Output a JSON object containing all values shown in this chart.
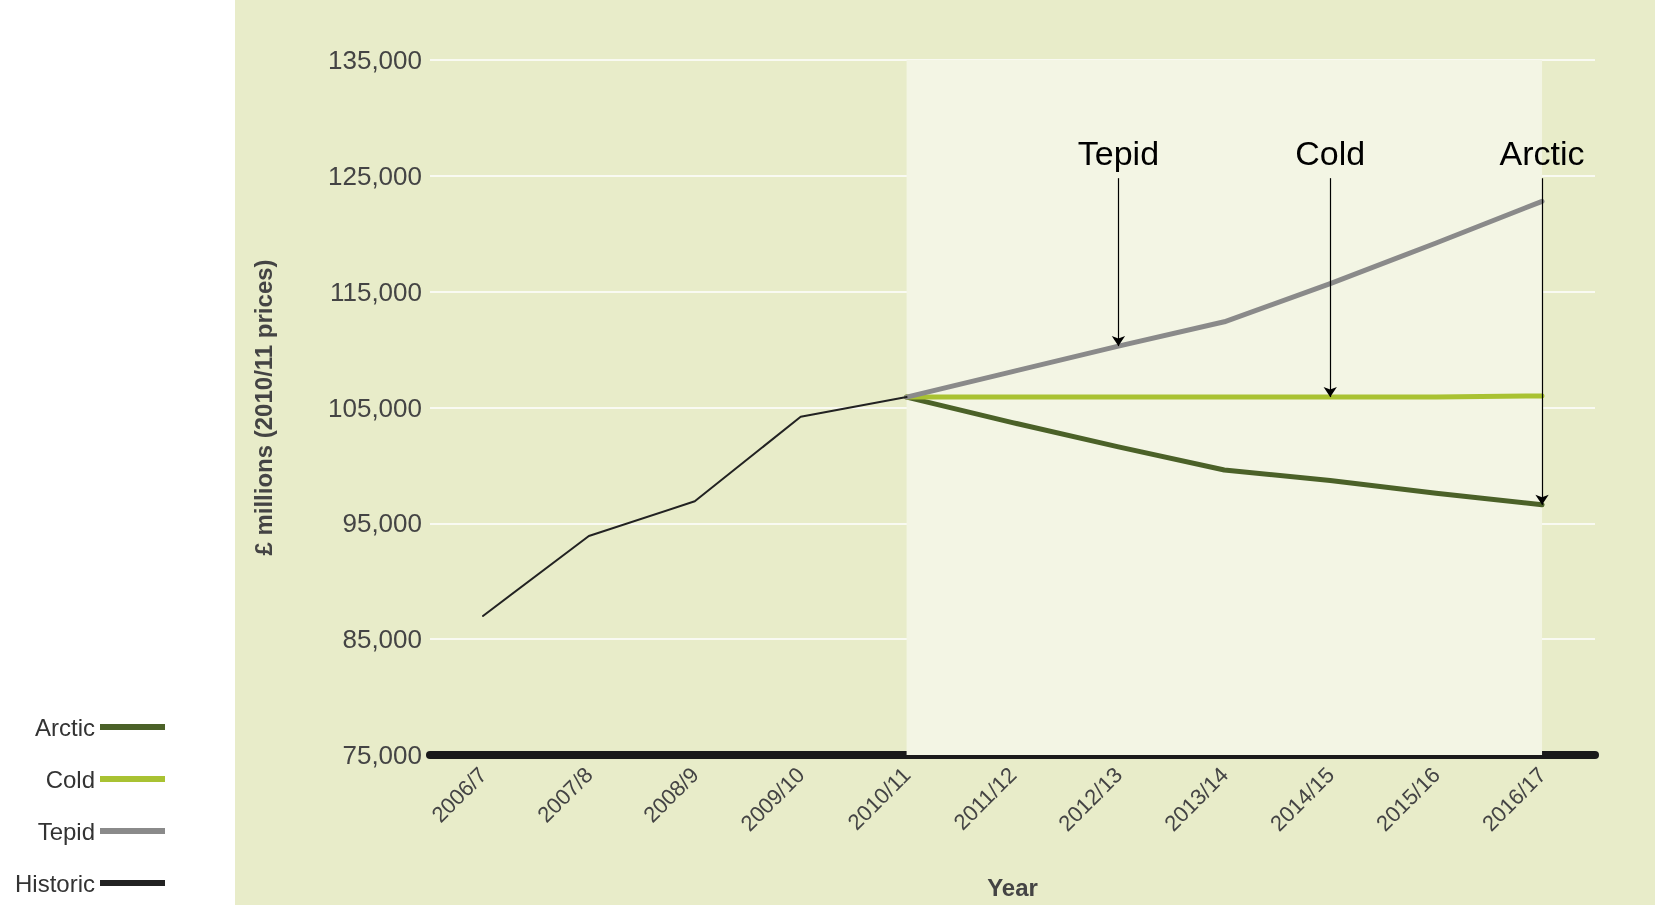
{
  "chart_data": {
    "type": "line",
    "xlabel": "Year",
    "ylabel": "£ millions (2010/11 prices)",
    "categories": [
      "2006/7",
      "2007/8",
      "2008/9",
      "2009/10",
      "2010/11",
      "2011/12",
      "2012/13",
      "2013/14",
      "2014/15",
      "2015/16",
      "2016/17"
    ],
    "series": [
      {
        "name": "Arctic",
        "color": "#4b6128",
        "values": [
          null,
          null,
          null,
          null,
          105900,
          103700,
          101600,
          99600,
          98700,
          97600,
          96600
        ]
      },
      {
        "name": "Cold",
        "color": "#a9c232",
        "values": [
          null,
          null,
          null,
          null,
          105900,
          105900,
          105900,
          105900,
          105900,
          105900,
          106000
        ]
      },
      {
        "name": "Tepid",
        "color": "#8a8a8a",
        "values": [
          null,
          null,
          null,
          null,
          105900,
          108100,
          110300,
          112400,
          115700,
          119200,
          122800
        ]
      },
      {
        "name": "Historic",
        "color": "#222222",
        "values": [
          87000,
          93900,
          96900,
          104200,
          105900,
          null,
          null,
          null,
          null,
          null,
          null
        ]
      }
    ],
    "ylim": [
      75000,
      135000
    ],
    "yticks": [
      {
        "value": 75000,
        "label": "75,000"
      },
      {
        "value": 85000,
        "label": "85,000"
      },
      {
        "value": 95000,
        "label": "95,000"
      },
      {
        "value": 105000,
        "label": "105,000"
      },
      {
        "value": 115000,
        "label": "115,000"
      },
      {
        "value": 125000,
        "label": "125,000"
      },
      {
        "value": 135000,
        "label": "135,000"
      }
    ],
    "bands": [
      {
        "axis": "x",
        "from": "2010/11",
        "to": "2016/17",
        "color": "#f3f5e4"
      }
    ],
    "annotations": [
      {
        "text": "Tepid",
        "x": "2012/13",
        "y": 110300
      },
      {
        "text": "Cold",
        "x": "2014/15",
        "y": 105900
      },
      {
        "text": "Arctic",
        "x": "2016/17",
        "y": 96600
      }
    ],
    "grid": "y",
    "legend": "bottom left",
    "marker": "none",
    "line_style": "solid"
  }
}
